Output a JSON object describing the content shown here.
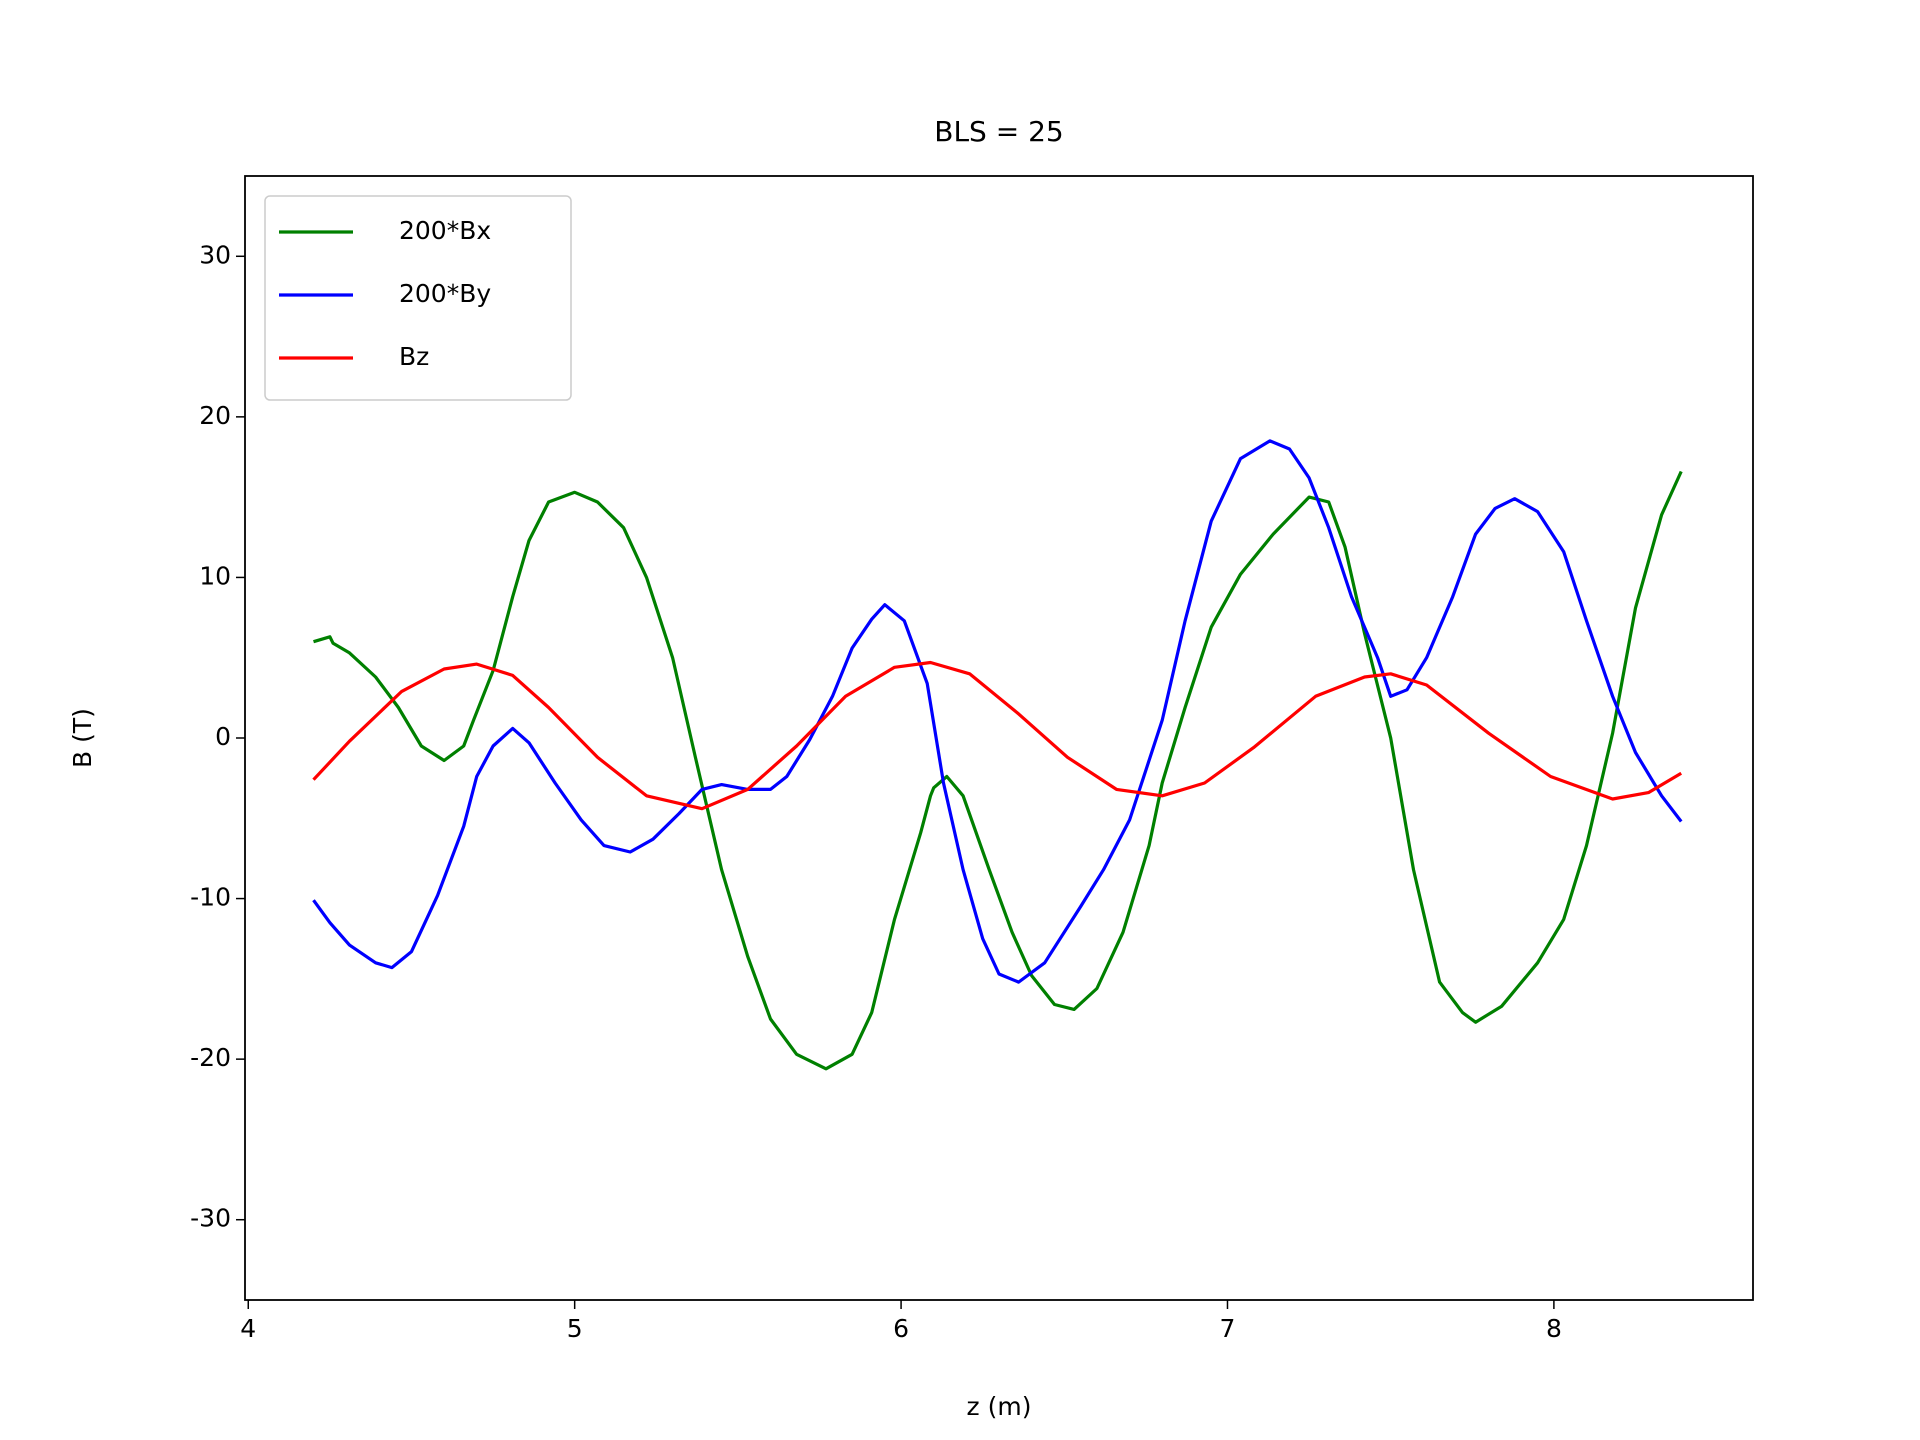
{
  "chart_data": {
    "type": "line",
    "title": "BLS = 25",
    "xlabel": "z (m)",
    "ylabel": "B (T)",
    "xlim": [
      3.99,
      8.61
    ],
    "ylim": [
      -35,
      35
    ],
    "xticks": [
      4,
      5,
      6,
      7,
      8
    ],
    "yticks": [
      -30,
      -20,
      -10,
      0,
      10,
      20,
      30
    ],
    "legend": "upper left",
    "series": [
      {
        "name": "200*Bx",
        "color": "#008000",
        "x": [
          4.2,
          4.25,
          4.26,
          4.31,
          4.39,
          4.46,
          4.53,
          4.6,
          4.66,
          4.69,
          4.75,
          4.81,
          4.86,
          4.92,
          5.0,
          5.07,
          5.15,
          5.22,
          5.3,
          5.37,
          5.45,
          5.53,
          5.6,
          5.68,
          5.77,
          5.85,
          5.91,
          5.98,
          6.06,
          6.09,
          6.1,
          6.14,
          6.19,
          6.27,
          6.34,
          6.4,
          6.47,
          6.53,
          6.6,
          6.68,
          6.76,
          6.8,
          6.87,
          6.95,
          7.04,
          7.14,
          7.25,
          7.31,
          7.36,
          7.42,
          7.5,
          7.57,
          7.65,
          7.72,
          7.76,
          7.84,
          7.95,
          8.03,
          8.1,
          8.18,
          8.25,
          8.33,
          8.39
        ],
        "values": [
          6.0,
          6.3,
          5.9,
          5.3,
          3.8,
          1.9,
          -0.5,
          -1.4,
          -0.5,
          1.1,
          4.2,
          8.8,
          12.3,
          14.7,
          15.3,
          14.7,
          13.1,
          10.0,
          5.0,
          -1.2,
          -8.2,
          -13.6,
          -17.5,
          -19.7,
          -20.6,
          -19.7,
          -17.1,
          -11.3,
          -5.9,
          -3.6,
          -3.1,
          -2.4,
          -3.6,
          -8.2,
          -12.1,
          -14.8,
          -16.6,
          -16.9,
          -15.6,
          -12.1,
          -6.7,
          -2.8,
          1.9,
          6.9,
          10.2,
          12.7,
          15.0,
          14.7,
          11.9,
          6.5,
          0.0,
          -8.2,
          -15.2,
          -17.1,
          -17.7,
          -16.7,
          -14.0,
          -11.3,
          -6.7,
          0.3,
          8.1,
          13.9,
          16.6
        ]
      },
      {
        "name": "200*By",
        "color": "#0000ff",
        "x": [
          4.2,
          4.25,
          4.31,
          4.39,
          4.44,
          4.5,
          4.58,
          4.66,
          4.7,
          4.75,
          4.81,
          4.86,
          4.94,
          5.02,
          5.09,
          5.17,
          5.24,
          5.32,
          5.39,
          5.45,
          5.53,
          5.6,
          5.65,
          5.72,
          5.79,
          5.85,
          5.91,
          5.95,
          6.01,
          6.08,
          6.13,
          6.19,
          6.25,
          6.3,
          6.36,
          6.44,
          6.55,
          6.62,
          6.7,
          6.8,
          6.87,
          6.95,
          7.04,
          7.13,
          7.19,
          7.25,
          7.31,
          7.38,
          7.46,
          7.5,
          7.55,
          7.61,
          7.69,
          7.76,
          7.82,
          7.88,
          7.95,
          8.03,
          8.1,
          8.18,
          8.25,
          8.33,
          8.39
        ],
        "values": [
          -10.1,
          -11.5,
          -12.9,
          -14.0,
          -14.3,
          -13.3,
          -9.8,
          -5.5,
          -2.4,
          -0.5,
          0.6,
          -0.3,
          -2.8,
          -5.1,
          -6.7,
          -7.1,
          -6.3,
          -4.7,
          -3.2,
          -2.9,
          -3.2,
          -3.2,
          -2.4,
          -0.1,
          2.6,
          5.6,
          7.4,
          8.3,
          7.3,
          3.4,
          -2.8,
          -8.2,
          -12.5,
          -14.7,
          -15.2,
          -14.0,
          -10.5,
          -8.2,
          -5.1,
          1.1,
          7.3,
          13.5,
          17.4,
          18.5,
          18.0,
          16.2,
          13.1,
          8.8,
          5.0,
          2.6,
          3.0,
          5.0,
          8.8,
          12.7,
          14.3,
          14.9,
          14.1,
          11.6,
          7.3,
          2.6,
          -0.9,
          -3.6,
          -5.2
        ]
      },
      {
        "name": "Bz",
        "color": "#ff0000",
        "x": [
          4.2,
          4.31,
          4.47,
          4.6,
          4.7,
          4.81,
          4.92,
          5.07,
          5.22,
          5.39,
          5.53,
          5.68,
          5.83,
          5.98,
          6.09,
          6.21,
          6.36,
          6.51,
          6.66,
          6.8,
          6.93,
          7.08,
          7.27,
          7.42,
          7.5,
          7.61,
          7.8,
          7.99,
          8.18,
          8.29,
          8.39
        ],
        "values": [
          -2.6,
          -0.2,
          2.9,
          4.3,
          4.6,
          3.9,
          1.9,
          -1.2,
          -3.6,
          -4.4,
          -3.2,
          -0.5,
          2.6,
          4.4,
          4.7,
          4.0,
          1.5,
          -1.2,
          -3.2,
          -3.6,
          -2.8,
          -0.6,
          2.6,
          3.8,
          4.0,
          3.3,
          0.3,
          -2.4,
          -3.8,
          -3.4,
          -2.2
        ]
      }
    ]
  }
}
